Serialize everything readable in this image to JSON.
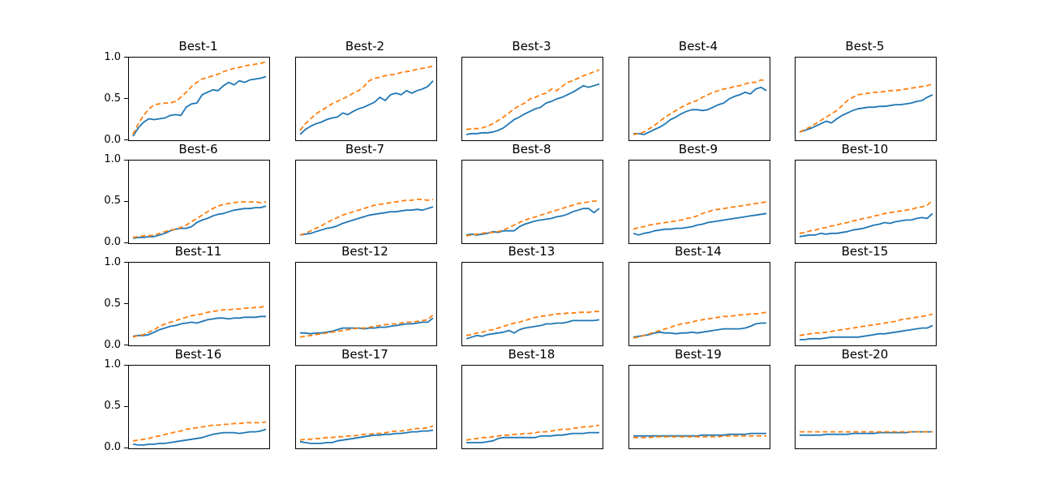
{
  "figure": {
    "background": "#ffffff",
    "series_colors": {
      "solid": "#1f77b4",
      "dashed": "#ff7f0e"
    }
  },
  "chart_data": {
    "type": "line",
    "layout": {
      "rows": 4,
      "cols": 5,
      "ylim": [
        0.0,
        1.0
      ],
      "grid": false,
      "legend": false,
      "x_tick_labels": false,
      "ytick_labels_on_first_column_only": true
    },
    "yticks": [
      {
        "label": "1.0",
        "value": 1.0
      },
      {
        "label": "0.5",
        "value": 0.5
      },
      {
        "label": "0.0",
        "value": 0.0
      }
    ],
    "series_styles": [
      {
        "key": "solid",
        "name": "solid-blue-series",
        "color": "#1f77b4",
        "dash": "none"
      },
      {
        "key": "dashed",
        "name": "dashed-orange-series",
        "color": "#ff7f0e",
        "dash": "6 3.5"
      }
    ],
    "panels": [
      {
        "title": "Best-1",
        "solid": [
          0.05,
          0.15,
          0.22,
          0.26,
          0.25,
          0.26,
          0.27,
          0.3,
          0.31,
          0.3,
          0.4,
          0.44,
          0.45,
          0.55,
          0.58,
          0.61,
          0.6,
          0.66,
          0.7,
          0.67,
          0.72,
          0.7,
          0.73,
          0.74,
          0.75,
          0.77
        ],
        "dashed": [
          0.07,
          0.2,
          0.3,
          0.38,
          0.43,
          0.44,
          0.45,
          0.45,
          0.47,
          0.52,
          0.58,
          0.65,
          0.7,
          0.74,
          0.76,
          0.78,
          0.8,
          0.83,
          0.85,
          0.87,
          0.88,
          0.9,
          0.91,
          0.92,
          0.93,
          0.95
        ]
      },
      {
        "title": "Best-2",
        "solid": [
          0.07,
          0.13,
          0.17,
          0.2,
          0.22,
          0.25,
          0.27,
          0.28,
          0.33,
          0.31,
          0.35,
          0.38,
          0.4,
          0.43,
          0.46,
          0.52,
          0.48,
          0.55,
          0.57,
          0.55,
          0.6,
          0.57,
          0.6,
          0.62,
          0.65,
          0.72
        ],
        "dashed": [
          0.12,
          0.2,
          0.26,
          0.32,
          0.36,
          0.4,
          0.44,
          0.47,
          0.5,
          0.53,
          0.57,
          0.6,
          0.65,
          0.72,
          0.75,
          0.76,
          0.78,
          0.79,
          0.8,
          0.82,
          0.83,
          0.84,
          0.86,
          0.87,
          0.88,
          0.9
        ]
      },
      {
        "title": "Best-3",
        "solid": [
          0.07,
          0.08,
          0.08,
          0.09,
          0.09,
          0.1,
          0.12,
          0.15,
          0.2,
          0.25,
          0.28,
          0.32,
          0.35,
          0.38,
          0.4,
          0.45,
          0.47,
          0.5,
          0.52,
          0.55,
          0.58,
          0.62,
          0.66,
          0.64,
          0.66,
          0.68
        ],
        "dashed": [
          0.13,
          0.14,
          0.14,
          0.15,
          0.17,
          0.2,
          0.24,
          0.28,
          0.33,
          0.38,
          0.42,
          0.45,
          0.5,
          0.52,
          0.55,
          0.57,
          0.62,
          0.6,
          0.65,
          0.7,
          0.72,
          0.75,
          0.78,
          0.8,
          0.83,
          0.85
        ]
      },
      {
        "title": "Best-4",
        "solid": [
          0.08,
          0.08,
          0.07,
          0.1,
          0.13,
          0.16,
          0.2,
          0.25,
          0.28,
          0.32,
          0.35,
          0.37,
          0.37,
          0.36,
          0.37,
          0.4,
          0.43,
          0.45,
          0.5,
          0.53,
          0.55,
          0.58,
          0.56,
          0.62,
          0.64,
          0.6
        ],
        "dashed": [
          0.07,
          0.08,
          0.1,
          0.14,
          0.18,
          0.23,
          0.28,
          0.32,
          0.36,
          0.4,
          0.43,
          0.46,
          0.48,
          0.52,
          0.55,
          0.58,
          0.6,
          0.62,
          0.63,
          0.65,
          0.66,
          0.68,
          0.7,
          0.7,
          0.73,
          0.72
        ]
      },
      {
        "title": "Best-5",
        "solid": [
          0.1,
          0.12,
          0.14,
          0.17,
          0.2,
          0.23,
          0.21,
          0.26,
          0.3,
          0.33,
          0.36,
          0.38,
          0.39,
          0.4,
          0.4,
          0.41,
          0.41,
          0.42,
          0.43,
          0.43,
          0.44,
          0.45,
          0.47,
          0.48,
          0.52,
          0.55
        ],
        "dashed": [
          0.1,
          0.13,
          0.16,
          0.2,
          0.24,
          0.28,
          0.32,
          0.36,
          0.42,
          0.48,
          0.52,
          0.55,
          0.56,
          0.57,
          0.58,
          0.58,
          0.59,
          0.6,
          0.6,
          0.61,
          0.62,
          0.63,
          0.64,
          0.65,
          0.66,
          0.68
        ]
      },
      {
        "title": "Best-6",
        "solid": [
          0.06,
          0.07,
          0.07,
          0.08,
          0.08,
          0.1,
          0.12,
          0.15,
          0.17,
          0.18,
          0.18,
          0.2,
          0.25,
          0.28,
          0.3,
          0.33,
          0.35,
          0.36,
          0.38,
          0.4,
          0.41,
          0.42,
          0.42,
          0.43,
          0.43,
          0.45
        ],
        "dashed": [
          0.07,
          0.08,
          0.09,
          0.09,
          0.1,
          0.12,
          0.14,
          0.16,
          0.17,
          0.19,
          0.22,
          0.26,
          0.3,
          0.34,
          0.38,
          0.42,
          0.45,
          0.47,
          0.48,
          0.49,
          0.5,
          0.5,
          0.5,
          0.5,
          0.49,
          0.5
        ]
      },
      {
        "title": "Best-7",
        "solid": [
          0.1,
          0.11,
          0.12,
          0.14,
          0.16,
          0.18,
          0.19,
          0.21,
          0.24,
          0.26,
          0.28,
          0.3,
          0.32,
          0.34,
          0.35,
          0.36,
          0.37,
          0.38,
          0.38,
          0.39,
          0.4,
          0.4,
          0.41,
          0.4,
          0.42,
          0.44
        ],
        "dashed": [
          0.1,
          0.12,
          0.15,
          0.18,
          0.21,
          0.25,
          0.28,
          0.31,
          0.34,
          0.36,
          0.38,
          0.4,
          0.42,
          0.44,
          0.46,
          0.47,
          0.48,
          0.49,
          0.5,
          0.51,
          0.52,
          0.52,
          0.53,
          0.53,
          0.52,
          0.53
        ]
      },
      {
        "title": "Best-8",
        "solid": [
          0.1,
          0.11,
          0.1,
          0.11,
          0.12,
          0.14,
          0.13,
          0.15,
          0.15,
          0.15,
          0.2,
          0.23,
          0.25,
          0.27,
          0.28,
          0.29,
          0.3,
          0.32,
          0.33,
          0.35,
          0.38,
          0.4,
          0.42,
          0.42,
          0.37,
          0.42
        ],
        "dashed": [
          0.09,
          0.1,
          0.11,
          0.12,
          0.13,
          0.13,
          0.14,
          0.16,
          0.19,
          0.22,
          0.25,
          0.28,
          0.3,
          0.32,
          0.34,
          0.36,
          0.38,
          0.4,
          0.42,
          0.44,
          0.46,
          0.48,
          0.49,
          0.5,
          0.51,
          0.51
        ]
      },
      {
        "title": "Best-9",
        "solid": [
          0.12,
          0.1,
          0.12,
          0.13,
          0.15,
          0.16,
          0.17,
          0.17,
          0.18,
          0.18,
          0.19,
          0.2,
          0.22,
          0.23,
          0.25,
          0.26,
          0.27,
          0.28,
          0.29,
          0.3,
          0.31,
          0.32,
          0.33,
          0.34,
          0.35,
          0.36
        ],
        "dashed": [
          0.17,
          0.19,
          0.2,
          0.22,
          0.23,
          0.24,
          0.25,
          0.26,
          0.27,
          0.28,
          0.3,
          0.31,
          0.33,
          0.36,
          0.38,
          0.4,
          0.41,
          0.42,
          0.43,
          0.44,
          0.45,
          0.46,
          0.47,
          0.48,
          0.49,
          0.5
        ]
      },
      {
        "title": "Best-10",
        "solid": [
          0.08,
          0.09,
          0.1,
          0.1,
          0.12,
          0.11,
          0.12,
          0.12,
          0.13,
          0.14,
          0.16,
          0.17,
          0.18,
          0.2,
          0.22,
          0.23,
          0.25,
          0.24,
          0.26,
          0.27,
          0.28,
          0.28,
          0.3,
          0.31,
          0.3,
          0.36
        ],
        "dashed": [
          0.12,
          0.13,
          0.15,
          0.16,
          0.18,
          0.19,
          0.21,
          0.22,
          0.24,
          0.25,
          0.27,
          0.28,
          0.3,
          0.31,
          0.33,
          0.34,
          0.36,
          0.37,
          0.38,
          0.39,
          0.4,
          0.41,
          0.43,
          0.44,
          0.46,
          0.52
        ]
      },
      {
        "title": "Best-11",
        "solid": [
          0.11,
          0.12,
          0.12,
          0.13,
          0.16,
          0.19,
          0.21,
          0.23,
          0.24,
          0.26,
          0.27,
          0.28,
          0.27,
          0.29,
          0.31,
          0.32,
          0.33,
          0.33,
          0.32,
          0.33,
          0.33,
          0.34,
          0.34,
          0.34,
          0.35,
          0.35
        ],
        "dashed": [
          0.1,
          0.12,
          0.13,
          0.16,
          0.19,
          0.23,
          0.26,
          0.28,
          0.3,
          0.32,
          0.34,
          0.36,
          0.37,
          0.38,
          0.4,
          0.41,
          0.42,
          0.43,
          0.43,
          0.44,
          0.44,
          0.45,
          0.45,
          0.46,
          0.46,
          0.48
        ]
      },
      {
        "title": "Best-12",
        "solid": [
          0.15,
          0.15,
          0.14,
          0.15,
          0.15,
          0.16,
          0.17,
          0.19,
          0.21,
          0.21,
          0.21,
          0.21,
          0.2,
          0.21,
          0.21,
          0.22,
          0.22,
          0.23,
          0.24,
          0.25,
          0.26,
          0.26,
          0.27,
          0.28,
          0.28,
          0.33
        ],
        "dashed": [
          0.1,
          0.11,
          0.12,
          0.13,
          0.14,
          0.15,
          0.16,
          0.17,
          0.18,
          0.19,
          0.2,
          0.21,
          0.21,
          0.22,
          0.23,
          0.24,
          0.25,
          0.26,
          0.26,
          0.27,
          0.28,
          0.28,
          0.29,
          0.3,
          0.31,
          0.37
        ]
      },
      {
        "title": "Best-13",
        "solid": [
          0.08,
          0.1,
          0.12,
          0.11,
          0.13,
          0.14,
          0.15,
          0.16,
          0.18,
          0.15,
          0.19,
          0.21,
          0.22,
          0.23,
          0.24,
          0.26,
          0.26,
          0.27,
          0.27,
          0.28,
          0.3,
          0.3,
          0.3,
          0.3,
          0.3,
          0.31
        ],
        "dashed": [
          0.12,
          0.13,
          0.15,
          0.16,
          0.18,
          0.19,
          0.21,
          0.23,
          0.25,
          0.27,
          0.28,
          0.3,
          0.32,
          0.34,
          0.35,
          0.36,
          0.37,
          0.38,
          0.38,
          0.39,
          0.39,
          0.4,
          0.4,
          0.4,
          0.41,
          0.41
        ]
      },
      {
        "title": "Best-14",
        "solid": [
          0.1,
          0.11,
          0.12,
          0.13,
          0.15,
          0.16,
          0.15,
          0.15,
          0.14,
          0.15,
          0.15,
          0.16,
          0.15,
          0.16,
          0.17,
          0.18,
          0.19,
          0.2,
          0.2,
          0.2,
          0.2,
          0.21,
          0.23,
          0.26,
          0.27,
          0.27
        ],
        "dashed": [
          0.09,
          0.1,
          0.12,
          0.14,
          0.16,
          0.18,
          0.2,
          0.22,
          0.24,
          0.26,
          0.27,
          0.28,
          0.3,
          0.31,
          0.32,
          0.33,
          0.34,
          0.35,
          0.35,
          0.36,
          0.37,
          0.37,
          0.38,
          0.38,
          0.39,
          0.4
        ]
      },
      {
        "title": "Best-15",
        "solid": [
          0.07,
          0.07,
          0.08,
          0.08,
          0.08,
          0.09,
          0.1,
          0.1,
          0.1,
          0.1,
          0.1,
          0.1,
          0.11,
          0.12,
          0.13,
          0.14,
          0.14,
          0.15,
          0.16,
          0.17,
          0.18,
          0.19,
          0.2,
          0.21,
          0.21,
          0.24
        ],
        "dashed": [
          0.12,
          0.13,
          0.14,
          0.15,
          0.15,
          0.16,
          0.17,
          0.18,
          0.19,
          0.2,
          0.21,
          0.22,
          0.23,
          0.24,
          0.25,
          0.26,
          0.27,
          0.28,
          0.29,
          0.31,
          0.32,
          0.33,
          0.34,
          0.35,
          0.36,
          0.38
        ]
      },
      {
        "title": "Best-16",
        "solid": [
          0.05,
          0.04,
          0.04,
          0.05,
          0.05,
          0.06,
          0.06,
          0.07,
          0.08,
          0.09,
          0.1,
          0.11,
          0.12,
          0.13,
          0.15,
          0.17,
          0.18,
          0.19,
          0.19,
          0.19,
          0.18,
          0.19,
          0.2,
          0.2,
          0.21,
          0.23
        ],
        "dashed": [
          0.09,
          0.1,
          0.11,
          0.12,
          0.14,
          0.15,
          0.17,
          0.18,
          0.2,
          0.21,
          0.23,
          0.24,
          0.25,
          0.26,
          0.27,
          0.28,
          0.28,
          0.29,
          0.29,
          0.3,
          0.3,
          0.31,
          0.31,
          0.31,
          0.31,
          0.32
        ]
      },
      {
        "title": "Best-17",
        "solid": [
          0.08,
          0.07,
          0.06,
          0.06,
          0.06,
          0.07,
          0.07,
          0.09,
          0.1,
          0.11,
          0.12,
          0.13,
          0.14,
          0.15,
          0.16,
          0.16,
          0.17,
          0.17,
          0.18,
          0.18,
          0.19,
          0.2,
          0.2,
          0.21,
          0.21,
          0.22
        ],
        "dashed": [
          0.1,
          0.11,
          0.11,
          0.12,
          0.12,
          0.13,
          0.13,
          0.14,
          0.14,
          0.15,
          0.15,
          0.16,
          0.17,
          0.17,
          0.18,
          0.18,
          0.19,
          0.2,
          0.21,
          0.21,
          0.22,
          0.23,
          0.24,
          0.24,
          0.25,
          0.27
        ]
      },
      {
        "title": "Best-18",
        "solid": [
          0.07,
          0.07,
          0.07,
          0.07,
          0.08,
          0.09,
          0.12,
          0.13,
          0.13,
          0.13,
          0.13,
          0.13,
          0.13,
          0.13,
          0.15,
          0.15,
          0.15,
          0.16,
          0.16,
          0.17,
          0.18,
          0.18,
          0.18,
          0.19,
          0.19,
          0.19
        ],
        "dashed": [
          0.1,
          0.11,
          0.12,
          0.13,
          0.13,
          0.14,
          0.15,
          0.16,
          0.16,
          0.17,
          0.17,
          0.18,
          0.18,
          0.19,
          0.2,
          0.2,
          0.21,
          0.22,
          0.23,
          0.23,
          0.24,
          0.25,
          0.26,
          0.26,
          0.27,
          0.28
        ]
      },
      {
        "title": "Best-19",
        "solid": [
          0.15,
          0.15,
          0.15,
          0.15,
          0.15,
          0.15,
          0.15,
          0.15,
          0.15,
          0.15,
          0.15,
          0.15,
          0.15,
          0.16,
          0.16,
          0.16,
          0.16,
          0.16,
          0.17,
          0.17,
          0.17,
          0.17,
          0.18,
          0.18,
          0.18,
          0.18
        ],
        "dashed": [
          0.13,
          0.13,
          0.13,
          0.13,
          0.14,
          0.14,
          0.14,
          0.14,
          0.14,
          0.14,
          0.14,
          0.14,
          0.14,
          0.14,
          0.14,
          0.14,
          0.14,
          0.15,
          0.15,
          0.15,
          0.15,
          0.15,
          0.15,
          0.15,
          0.15,
          0.15
        ]
      },
      {
        "title": "Best-20",
        "solid": [
          0.16,
          0.16,
          0.16,
          0.16,
          0.16,
          0.17,
          0.17,
          0.17,
          0.17,
          0.17,
          0.18,
          0.18,
          0.18,
          0.18,
          0.18,
          0.19,
          0.19,
          0.19,
          0.19,
          0.19,
          0.19,
          0.2,
          0.2,
          0.2,
          0.2,
          0.2
        ],
        "dashed": [
          0.2,
          0.2,
          0.2,
          0.2,
          0.2,
          0.2,
          0.2,
          0.2,
          0.2,
          0.2,
          0.2,
          0.2,
          0.2,
          0.2,
          0.2,
          0.2,
          0.2,
          0.2,
          0.2,
          0.2,
          0.2,
          0.2,
          0.2,
          0.2,
          0.2,
          0.2
        ]
      }
    ]
  }
}
